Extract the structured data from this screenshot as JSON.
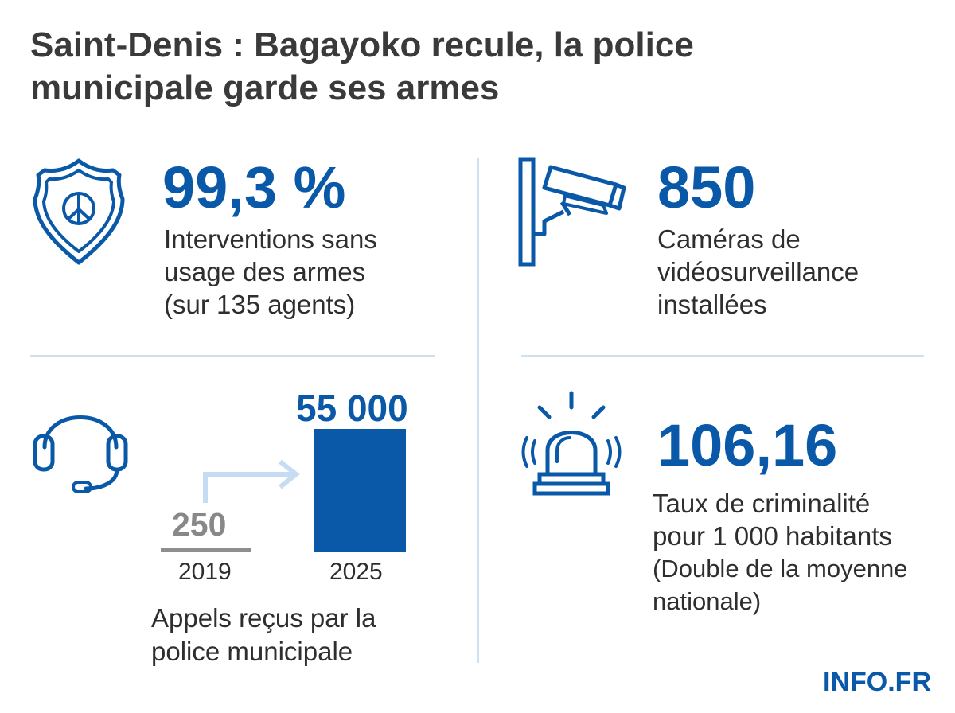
{
  "title": {
    "line1": "Saint-Denis : Bagayoko recule, la police",
    "line2": "municipale garde ses armes"
  },
  "stats": {
    "weapons": {
      "icon": "police-badge-peace-icon",
      "value": "99,3 %",
      "desc": [
        "Interventions sans",
        "usage des armes",
        "(sur 135 agents)"
      ]
    },
    "cameras": {
      "icon": "cctv-camera-icon",
      "value": "850",
      "desc": [
        "Caméras de",
        "vidéosurveillance",
        "installées"
      ]
    },
    "crime": {
      "icon": "siren-icon",
      "value": "106,16",
      "desc": [
        "Taux de criminalité",
        "pour 1 000 habitants"
      ],
      "note": [
        "(Double de la moyenne",
        "nationale)"
      ]
    },
    "calls": {
      "icon": "headset-icon",
      "desc": [
        "Appels reçus par la",
        "police municipale"
      ]
    }
  },
  "chart_data": {
    "type": "bar",
    "categories": [
      "2019",
      "2025"
    ],
    "values": [
      250,
      55000
    ],
    "value_labels": [
      "250",
      "55 000"
    ],
    "colors": {
      "2019": "#8e8e8e",
      "2025": "#0a58a8"
    }
  },
  "colors": {
    "accent": "#0a58a8",
    "divider": "#cfe0ee",
    "arrow": "#c5dcf2",
    "text": "#2e2e2e"
  },
  "brand": "INFO.FR"
}
